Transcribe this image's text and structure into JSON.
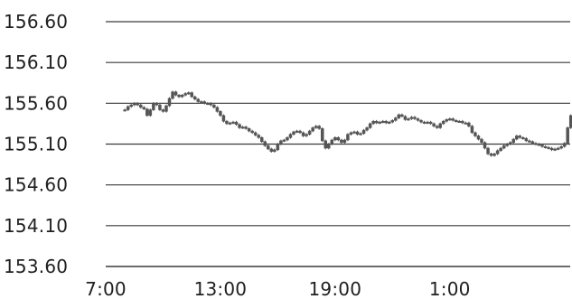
{
  "chart_data": {
    "type": "candlestick",
    "title": "",
    "xlabel": "",
    "ylabel": "",
    "ylim": [
      153.6,
      156.6
    ],
    "ytick_labels": [
      "156.60",
      "156.10",
      "155.60",
      "155.10",
      "154.60",
      "154.10",
      "153.60"
    ],
    "ytick_values": [
      156.6,
      156.1,
      155.6,
      155.1,
      154.6,
      154.1,
      153.6
    ],
    "xtick_labels": [
      "7:00",
      "13:00",
      "19:00",
      "1:00"
    ],
    "xtick_hours": [
      7,
      13,
      19,
      25
    ],
    "xlim_hours": [
      7,
      31.3
    ],
    "grid": true,
    "series": [
      {
        "interval_minutes": 10,
        "start_hour": 8,
        "close": [
          155.52,
          155.56,
          155.58,
          155.6,
          155.58,
          155.55,
          155.53,
          155.45,
          155.52,
          155.6,
          155.58,
          155.52,
          155.5,
          155.57,
          155.66,
          155.74,
          155.7,
          155.68,
          155.7,
          155.72,
          155.73,
          155.68,
          155.65,
          155.62,
          155.62,
          155.6,
          155.6,
          155.58,
          155.55,
          155.5,
          155.45,
          155.38,
          155.35,
          155.36,
          155.37,
          155.34,
          155.3,
          155.31,
          155.29,
          155.26,
          155.24,
          155.21,
          155.18,
          155.13,
          155.08,
          155.04,
          155.01,
          155.03,
          155.1,
          155.14,
          155.15,
          155.18,
          155.22,
          155.25,
          155.26,
          155.24,
          155.2,
          155.22,
          155.26,
          155.3,
          155.32,
          155.29,
          155.14,
          155.05,
          155.1,
          155.15,
          155.18,
          155.15,
          155.12,
          155.15,
          155.22,
          155.24,
          155.25,
          155.22,
          155.23,
          155.27,
          155.3,
          155.35,
          155.38,
          155.36,
          155.37,
          155.38,
          155.36,
          155.37,
          155.39,
          155.42,
          155.46,
          155.44,
          155.4,
          155.41,
          155.43,
          155.41,
          155.39,
          155.37,
          155.36,
          155.37,
          155.35,
          155.32,
          155.3,
          155.35,
          155.38,
          155.4,
          155.41,
          155.39,
          155.38,
          155.38,
          155.36,
          155.36,
          155.32,
          155.24,
          155.2,
          155.16,
          155.12,
          155.05,
          154.98,
          154.96,
          154.98,
          155.02,
          155.05,
          155.08,
          155.1,
          155.12,
          155.16,
          155.2,
          155.18,
          155.17,
          155.14,
          155.13,
          155.11,
          155.1,
          155.09,
          155.07,
          155.06,
          155.05,
          155.03,
          155.04,
          155.05,
          155.07,
          155.11,
          155.3,
          155.45,
          155.42,
          155.5,
          155.38,
          155.2,
          155.12,
          155.16,
          155.2,
          155.28,
          155.34,
          155.32,
          155.31,
          155.33,
          155.36,
          155.32,
          155.26,
          155.22,
          155.26,
          155.28,
          155.27
        ]
      }
    ]
  }
}
